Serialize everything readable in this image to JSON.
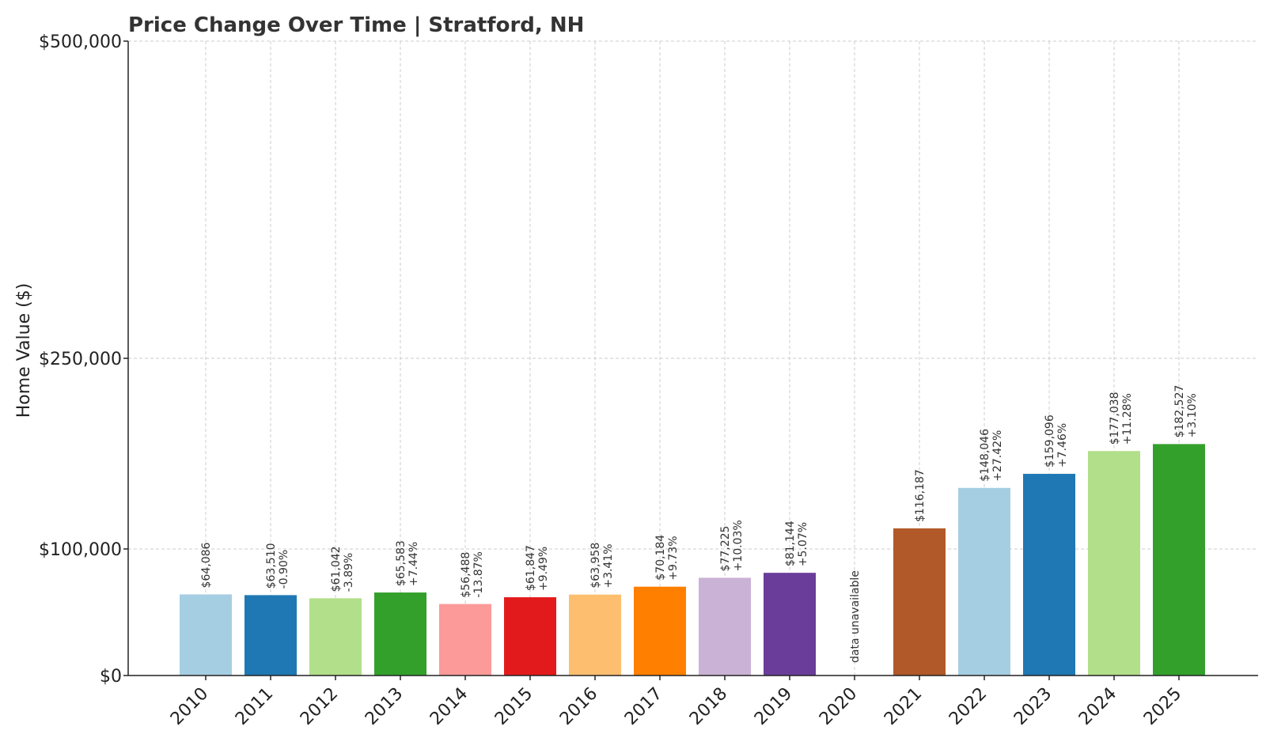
{
  "chart_data": {
    "type": "bar",
    "title": "Price Change Over Time | Stratford, NH",
    "xlabel": "",
    "ylabel": "Home Value ($)",
    "ylim": [
      0,
      500000
    ],
    "y_scale": "custom (0, 100000, 250000, 500000 tick positions non-linear)",
    "yticks": [
      {
        "value": 0,
        "label": "$0"
      },
      {
        "value": 100000,
        "label": "$100,000"
      },
      {
        "value": 250000,
        "label": "$250,000"
      },
      {
        "value": 500000,
        "label": "$500,000"
      }
    ],
    "grid": true,
    "categories": [
      "2010",
      "2011",
      "2012",
      "2013",
      "2014",
      "2015",
      "2016",
      "2017",
      "2018",
      "2019",
      "2020",
      "2021",
      "2022",
      "2023",
      "2024",
      "2025"
    ],
    "values": [
      64086,
      63510,
      61042,
      65583,
      56488,
      61847,
      63958,
      70184,
      77225,
      81144,
      null,
      116187,
      148046,
      159096,
      177038,
      182527
    ],
    "value_labels": [
      "$64,086",
      "$63,510",
      "$61,042",
      "$65,583",
      "$56,488",
      "$61,847",
      "$63,958",
      "$70,184",
      "$77,225",
      "$81,144",
      "",
      "$116,187",
      "$148,046",
      "$159,096",
      "$177,038",
      "$182,527"
    ],
    "change_labels": [
      "",
      "-0.90%",
      "-3.89%",
      "+7.44%",
      "-13.87%",
      "+9.49%",
      "+3.41%",
      "+9.73%",
      "+10.03%",
      "+5.07%",
      "",
      "",
      "+27.42%",
      "+7.46%",
      "+11.28%",
      "+3.10%"
    ],
    "missing_label": "data unavailable",
    "colors": [
      "#a6cee3",
      "#1f78b4",
      "#b2df8a",
      "#33a02c",
      "#fb9a99",
      "#e31a1c",
      "#fdbf6f",
      "#ff7f00",
      "#cab2d6",
      "#6a3d9a",
      "#ffff99",
      "#b15928",
      "#a6cee3",
      "#1f78b4",
      "#b2df8a",
      "#33a02c"
    ]
  }
}
